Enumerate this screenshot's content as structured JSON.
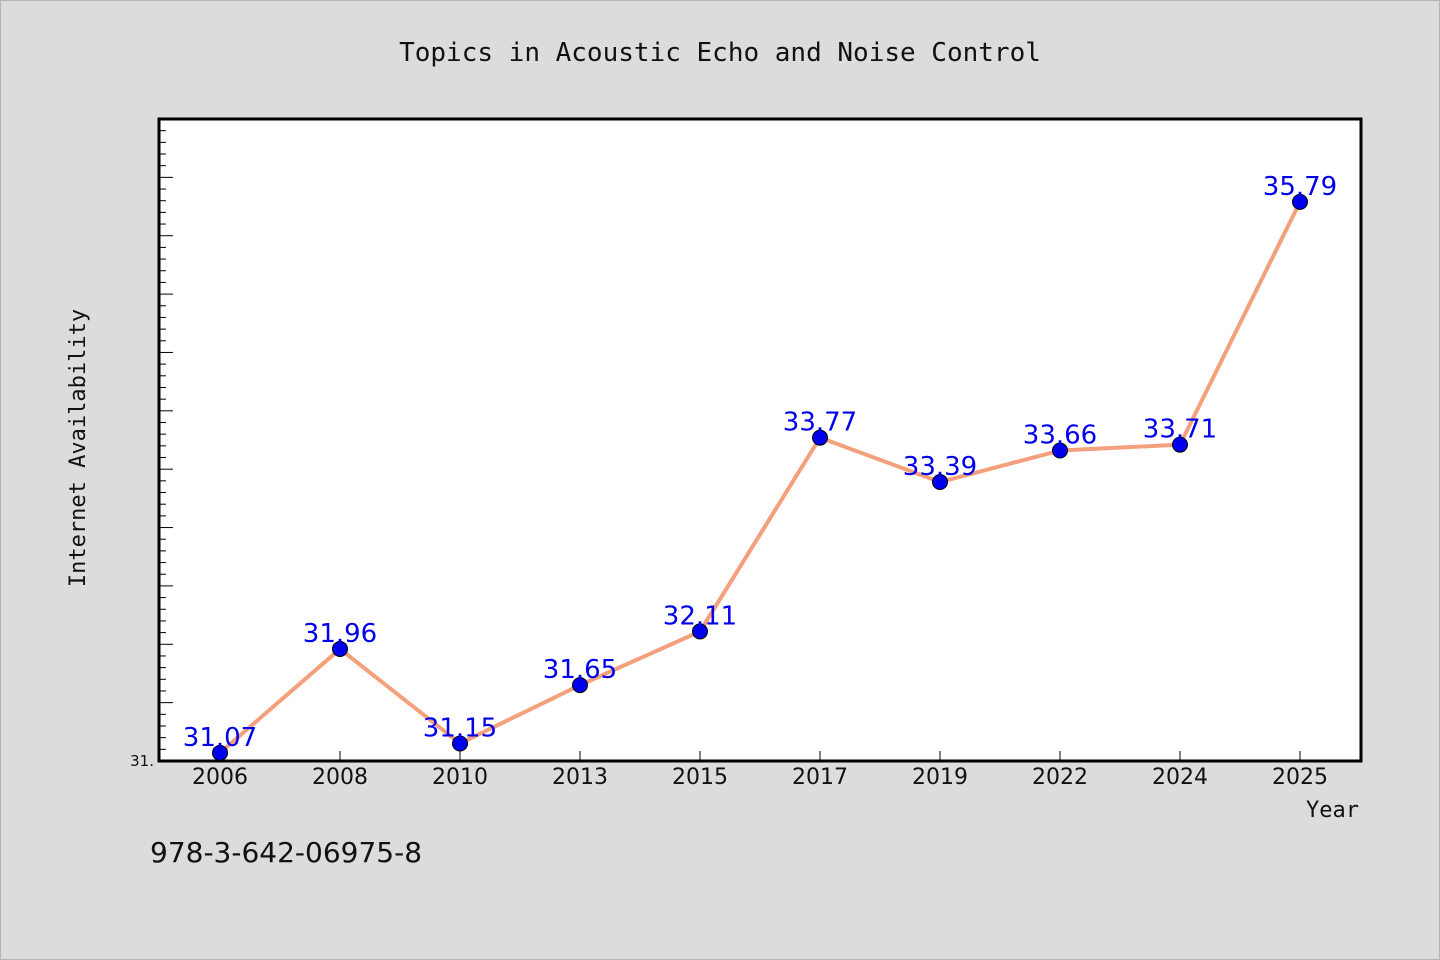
{
  "chart_data": {
    "type": "line",
    "title": "Topics in Acoustic Echo and Noise Control",
    "xlabel": "Year",
    "ylabel": "Internet Availability",
    "categories": [
      "2006",
      "2008",
      "2010",
      "2013",
      "2015",
      "2017",
      "2019",
      "2022",
      "2024",
      "2025"
    ],
    "series": [
      {
        "values": [
          31.07,
          31.96,
          31.15,
          31.65,
          32.11,
          33.77,
          33.39,
          33.66,
          33.71,
          35.79
        ]
      }
    ],
    "data_labels": [
      "31.07",
      "31.96",
      "31.15",
      "31.65",
      "32.11",
      "33.77",
      "33.39",
      "33.66",
      "33.71",
      "35.79"
    ],
    "y_min_label": "31.",
    "ylim": [
      31.0,
      36.5
    ],
    "grid": false,
    "line_color": "#f4a07c",
    "marker_color": "#0000ee"
  },
  "footer": {
    "isbn": "978-3-642-06975-8"
  }
}
